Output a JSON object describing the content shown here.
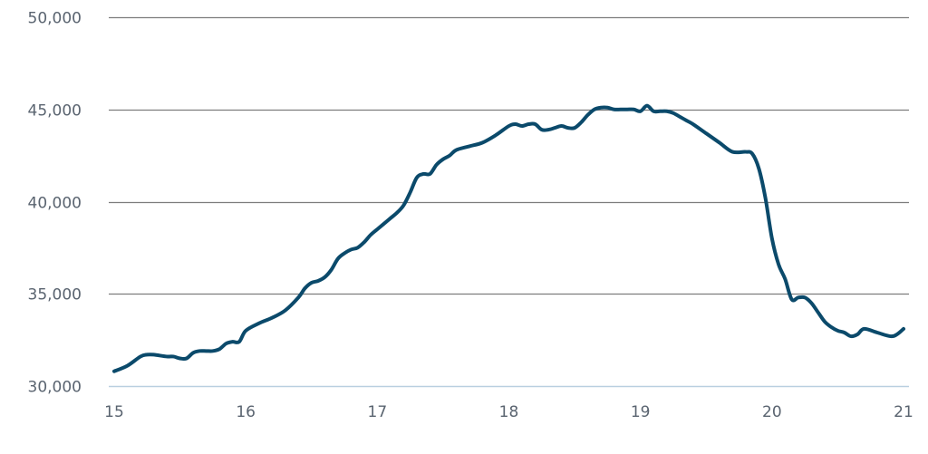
{
  "chart_data": {
    "type": "line",
    "title": "",
    "xlabel": "",
    "ylabel": "",
    "xlim": [
      15,
      21
    ],
    "ylim": [
      30000,
      50000
    ],
    "x_ticks": [
      15,
      16,
      17,
      18,
      19,
      20,
      21
    ],
    "x_tick_labels": [
      "15",
      "16",
      "17",
      "18",
      "19",
      "20",
      "21"
    ],
    "y_ticks": [
      30000,
      35000,
      40000,
      45000,
      50000
    ],
    "y_tick_labels": [
      "30,000",
      "35,000",
      "40,000",
      "45,000",
      "50,000"
    ],
    "grid": "horizontal",
    "legend": "none",
    "colors": {
      "line": "#0b4a6b",
      "gridline": "#7d7d7d",
      "baseline": "#b9cfe0",
      "tick_text": "#5a6470"
    },
    "series": [
      {
        "x": [
          15.0,
          15.1,
          15.2,
          15.25,
          15.3,
          15.4,
          15.45,
          15.5,
          15.55,
          15.6,
          15.65,
          15.7,
          15.75,
          15.8,
          15.85,
          15.9,
          15.95,
          16.0,
          16.1,
          16.2,
          16.3,
          16.4,
          16.45,
          16.5,
          16.55,
          16.6,
          16.65,
          16.7,
          16.75,
          16.8,
          16.85,
          16.9,
          16.95,
          17.0,
          17.05,
          17.1,
          17.15,
          17.2,
          17.25,
          17.3,
          17.35,
          17.4,
          17.45,
          17.5,
          17.55,
          17.6,
          17.7,
          17.8,
          17.9,
          18.0,
          18.05,
          18.1,
          18.15,
          18.2,
          18.25,
          18.3,
          18.35,
          18.4,
          18.45,
          18.5,
          18.55,
          18.6,
          18.65,
          18.7,
          18.75,
          18.8,
          18.85,
          18.9,
          18.95,
          19.0,
          19.05,
          19.1,
          19.15,
          19.2,
          19.25,
          19.3,
          19.35,
          19.4,
          19.5,
          19.6,
          19.7,
          19.8,
          19.85,
          19.9,
          19.95,
          20.0,
          20.05,
          20.1,
          20.15,
          20.2,
          20.25,
          20.3,
          20.35,
          20.4,
          20.45,
          20.5,
          20.55,
          20.6,
          20.65,
          20.7,
          20.8,
          20.9,
          20.95,
          21.0
        ],
        "y": [
          30800,
          31100,
          31600,
          31700,
          31700,
          31600,
          31600,
          31500,
          31500,
          31800,
          31900,
          31900,
          31900,
          32000,
          32300,
          32400,
          32400,
          33000,
          33400,
          33700,
          34100,
          34800,
          35300,
          35600,
          35700,
          35900,
          36300,
          36900,
          37200,
          37400,
          37500,
          37800,
          38200,
          38500,
          38800,
          39100,
          39400,
          39800,
          40500,
          41300,
          41500,
          41500,
          42000,
          42300,
          42500,
          42800,
          43000,
          43200,
          43600,
          44100,
          44200,
          44100,
          44200,
          44200,
          43900,
          43900,
          44000,
          44100,
          44000,
          44000,
          44300,
          44700,
          45000,
          45100,
          45100,
          45000,
          45000,
          45000,
          45000,
          44900,
          45200,
          44900,
          44900,
          44900,
          44800,
          44600,
          44400,
          44200,
          43700,
          43200,
          42700,
          42700,
          42600,
          41800,
          40200,
          38000,
          36600,
          35800,
          34700,
          34800,
          34800,
          34500,
          34000,
          33500,
          33200,
          33000,
          32900,
          32700,
          32800,
          33100,
          32900,
          32700,
          32800,
          33100
        ]
      }
    ]
  }
}
